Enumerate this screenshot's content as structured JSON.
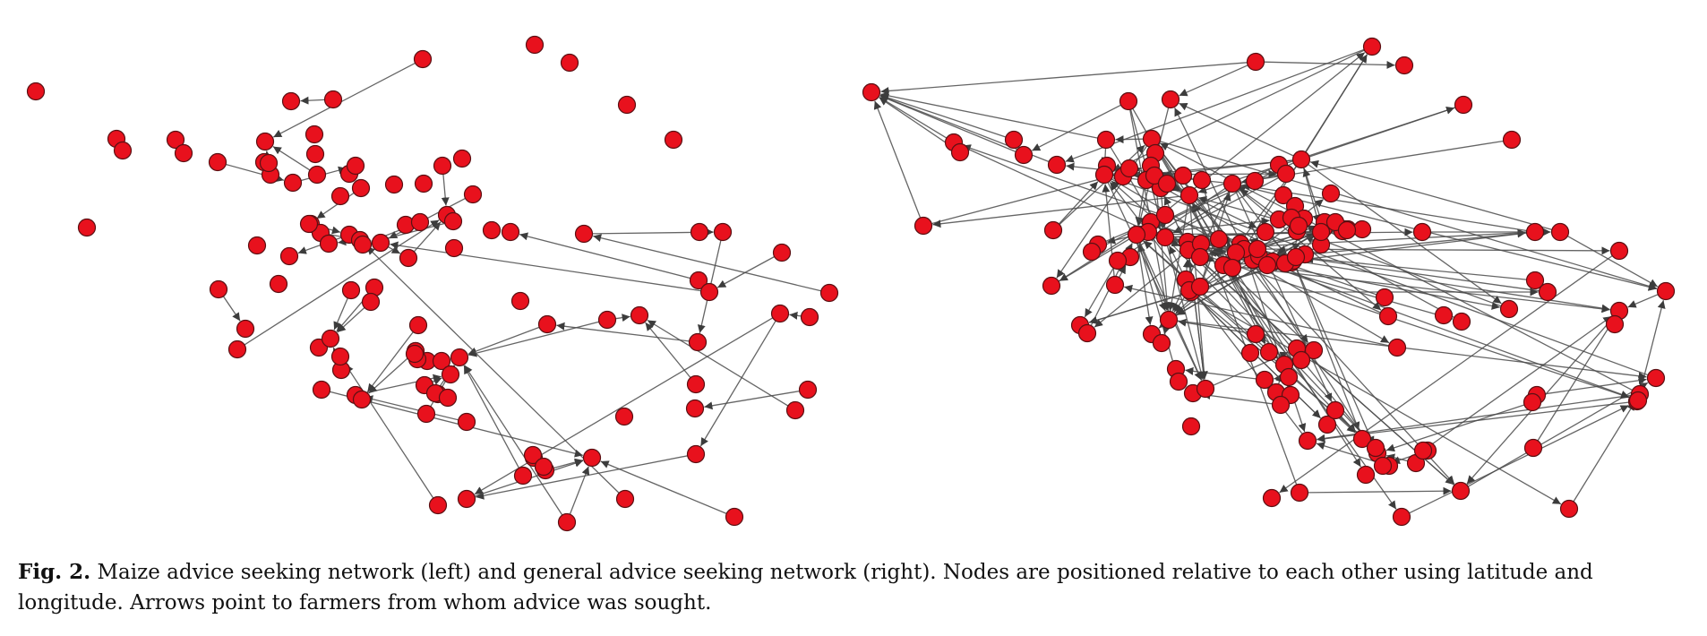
{
  "caption": {
    "label": "Fig. 2.",
    "text": "Maize advice seeking network (left) and general advice seeking network (right). Nodes are positioned relative to each other using latitude and longitude. Arrows point to farmers from whom advice was sought."
  },
  "colors": {
    "node_fill": "#e8111d",
    "node_stroke": "#5a1013",
    "edge": "#4a4a4a"
  },
  "networks": [
    {
      "name": "maize-advice-network"
    },
    {
      "name": "general-advice-network"
    }
  ]
}
